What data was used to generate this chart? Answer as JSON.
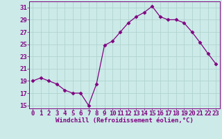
{
  "x": [
    0,
    1,
    2,
    3,
    4,
    5,
    6,
    7,
    8,
    9,
    10,
    11,
    12,
    13,
    14,
    15,
    16,
    17,
    18,
    19,
    20,
    21,
    22,
    23
  ],
  "y": [
    19,
    19.5,
    19,
    18.5,
    17.5,
    17,
    17,
    15,
    18.5,
    24.8,
    25.5,
    27,
    28.5,
    29.5,
    30.2,
    31.2,
    29.5,
    29,
    29,
    28.5,
    27,
    25.3,
    23.5,
    21.8
  ],
  "xlabel": "Windchill (Refroidissement éolien,°C)",
  "xticks": [
    0,
    1,
    2,
    3,
    4,
    5,
    6,
    7,
    8,
    9,
    10,
    11,
    12,
    13,
    14,
    15,
    16,
    17,
    18,
    19,
    20,
    21,
    22,
    23
  ],
  "yticks": [
    15,
    17,
    19,
    21,
    23,
    25,
    27,
    29,
    31
  ],
  "ylim": [
    14.5,
    32
  ],
  "xlim": [
    -0.5,
    23.5
  ],
  "line_color": "#800080",
  "marker": "D",
  "marker_size": 2.5,
  "background_color": "#cceae8",
  "grid_color": "#b0d4d0",
  "label_fontsize": 6.5,
  "tick_fontsize": 6.5
}
